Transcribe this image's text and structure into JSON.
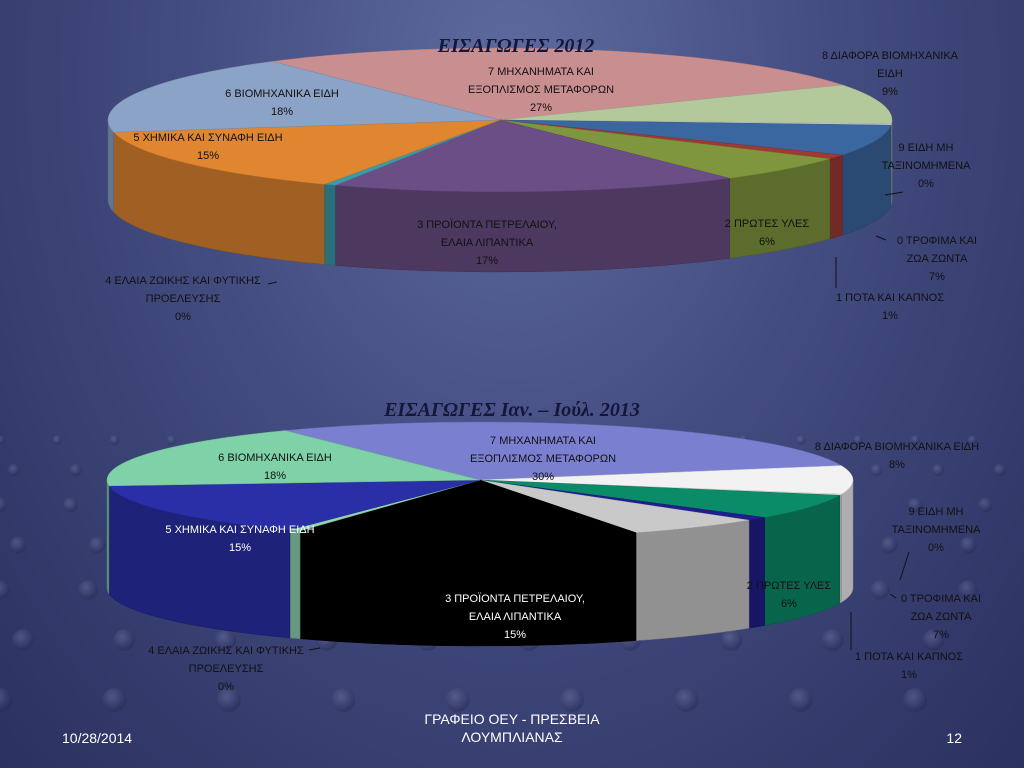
{
  "slide": {
    "date": "10/28/2014",
    "footer_center_line1": "ΓΡΑΦΕΙΟ ΟΕΥ - ΠΡΕΣΒΕΙΑ",
    "footer_center_line2": "ΛΟΥΜΠΛΙΑΝΑΣ",
    "page_number": "12"
  },
  "chart_data": [
    {
      "type": "pie",
      "title": "ΕΙΣΑΓΩΓΕΣ 2012",
      "slices": [
        {
          "lines": [
            "7 ΜΗΧΑΝΗΜΑΤΑ ΚΑΙ",
            "ΕΞΟΠΛΙΣΜΟΣ ΜΕΤΑΦΟΡΩΝ",
            "27%"
          ],
          "value": 27,
          "color": "#c98e90"
        },
        {
          "lines": [
            "8 ΔΙΑΦΟΡΑ ΒΙΟΜΗΧΑΝΙΚΑ",
            "ΕΙΔΗ",
            "9%"
          ],
          "value": 9,
          "color": "#b4c99b"
        },
        {
          "lines": [
            "9 ΕΙΔΗ ΜΗ",
            "ΤΑΞΙΝΟΜΗΜΕΝΑ",
            "0%"
          ],
          "value": 0.3,
          "color": "#c8ccd8"
        },
        {
          "lines": [
            "0 ΤΡΟΦΙΜΑ ΚΑΙ",
            "ΖΩΑ ΖΩΝΤΑ",
            "7%"
          ],
          "value": 7,
          "color": "#3b67a0"
        },
        {
          "lines": [
            "1 ΠΟΤΑ ΚΑΙ ΚΑΠΝΟΣ",
            "1%"
          ],
          "value": 1,
          "color": "#9d3a34"
        },
        {
          "lines": [
            "2 ΠΡΩΤΕΣ ΥΛΕΣ",
            "6%"
          ],
          "value": 6,
          "color": "#7f963e"
        },
        {
          "lines": [
            "3 ΠΡΟΪΟΝΤΑ ΠΕΤΡΕΛΑΙΟΥ,",
            "ΕΛΑΙΑ ΛΙΠΑΝΤΙΚΑ",
            "17%"
          ],
          "value": 17,
          "color": "#6b4e85"
        },
        {
          "lines": [
            "4 ΕΛΑΙΑ ΖΩΙΚΗΣ ΚΑΙ ΦΥΤΙΚΗΣ",
            "ΠΡΟΕΛΕΥΣΗΣ",
            "0%"
          ],
          "value": 0.5,
          "color": "#3a9aa8"
        },
        {
          "lines": [
            "5 ΧΗΜΙΚΑ ΚΑΙ ΣΥΝΑΦΗ ΕΙΔΗ",
            "15%"
          ],
          "value": 15,
          "color": "#e08530"
        },
        {
          "lines": [
            "6 ΒΙΟΜΗΧΑΝΙΚΑ ΕΙΔΗ",
            "18%"
          ],
          "value": 18,
          "color": "#8ba3c6"
        }
      ]
    },
    {
      "type": "pie",
      "title": "ΕΙΣΑΓΩΓΕΣ Ιαν. – Ιούλ. 2013",
      "slices": [
        {
          "lines": [
            "7 ΜΗΧΑΝΗΜΑΤΑ  ΚΑΙ",
            "ΕΞΟΠΛΙΣΜΟΣ  ΜΕΤΑΦΟΡΩΝ",
            "30%"
          ],
          "value": 30,
          "color": "#7b7fcf"
        },
        {
          "lines": [
            "8 ΔΙΑΦΟΡΑ ΒΙΟΜΗΧΑΝΙΚΑ  ΕΙΔΗ",
            "8%"
          ],
          "value": 8,
          "color": "#f2f2f2"
        },
        {
          "lines": [
            "9 ΕΙΔΗ ΜΗ",
            "ΤΑΞΙΝΟΜΗΜΕΝΑ",
            "0%"
          ],
          "value": 0.3,
          "color": "#e5e5e5"
        },
        {
          "lines": [
            "0 ΤΡΟΦΙΜΑ  ΚΑΙ",
            "ΖΩΑ ΖΩΝΤΑ",
            "7%"
          ],
          "value": 7,
          "color": "#0b8c68"
        },
        {
          "lines": [
            "1 ΠΟΤΑ  ΚΑΙ ΚΑΠΝΟΣ",
            "1%"
          ],
          "value": 1,
          "color": "#1e1e8c"
        },
        {
          "lines": [
            "2 ΠΡΩΤΕΣ  ΥΛΕΣ",
            "6%"
          ],
          "value": 6,
          "color": "#c9c9c9"
        },
        {
          "lines": [
            "3 ΠΡΟΪΟΝΤΑ  ΠΕΤΡΕΛΑΙΟΥ,",
            "ΕΛΑΙΑ ΛΙΠΑΝΤΙΚΑ",
            "15%"
          ],
          "value": 15,
          "color": "#000000"
        },
        {
          "lines": [
            "4 ΕΛΑΙΑ ΖΩΙΚΗΣ  ΚΑΙ ΦΥΤΙΚΗΣ",
            "ΠΡΟΕΛΕΥΣΗΣ",
            "0%"
          ],
          "value": 0.5,
          "color": "#8fd4b3"
        },
        {
          "lines": [
            "5 ΧΗΜΙΚΑ ΚΑΙ ΣΥΝΑΦΗ ΕΙΔΗ",
            "15%"
          ],
          "value": 15,
          "color": "#2a2fa8"
        },
        {
          "lines": [
            "6 ΒΙΟΜΗΧΑΝΙΚΑ  ΕΙΔΗ",
            "18%"
          ],
          "value": 18,
          "color": "#7fd1a8"
        }
      ]
    }
  ]
}
